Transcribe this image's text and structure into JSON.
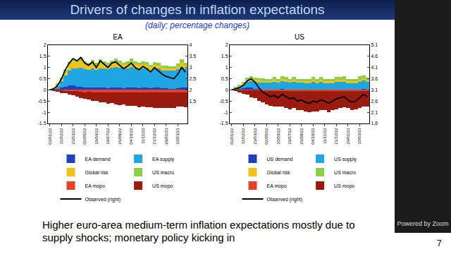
{
  "slide": {
    "title": "Drivers of changes in inflation expectations",
    "subtitle": "(daily; percentage changes)",
    "caption": "Higher euro-area medium-term inflation expectations mostly due to supply shocks; monetary policy kicking in",
    "footer": "Powered by Zoom",
    "page": "7"
  },
  "chart_data": [
    {
      "type": "bar",
      "stacked": true,
      "title": "EA",
      "grid": false,
      "legend": "bottom",
      "categories": [
        "03/01/22",
        null,
        null,
        "11/02/22",
        null,
        null,
        "23/03/22",
        null,
        null,
        "02/05/22",
        null,
        null,
        "10/06/22",
        null,
        null,
        "19/07/22",
        null,
        null,
        "26/08/22",
        null,
        null,
        "04/10/22",
        null,
        null,
        "11/11/22",
        null,
        null,
        "21/12/22",
        null,
        null,
        "29/01/23",
        null,
        null,
        "10/03/23",
        null,
        null
      ],
      "ylim": [
        -1.5,
        2
      ],
      "yticks": [
        -1.5,
        -1,
        -0.5,
        0,
        0.5,
        1,
        1.5,
        2
      ],
      "y2lim": [
        0.5,
        4
      ],
      "y2ticks": [
        1.5,
        2,
        2.5,
        3,
        3.5,
        4
      ],
      "series": [
        {
          "name": "EA demand",
          "color": "#1f3fbf",
          "values": [
            0,
            0.02,
            0.05,
            0.1,
            0.15,
            0.2,
            0.2,
            0.15,
            0.15,
            0.12,
            0.1,
            0.12,
            0.1,
            0.12,
            0.1,
            0.08,
            0.1,
            0.12,
            0.1,
            0.08,
            0.1,
            0.12,
            0.1,
            0.08,
            0.1,
            0.1,
            0.08,
            0.1,
            0.1,
            0.08,
            0.07,
            0.06,
            0.05,
            0.08,
            0.12,
            0.1
          ]
        },
        {
          "name": "EA supply",
          "color": "#1fa5e0",
          "values": [
            0,
            0.05,
            0.15,
            0.3,
            0.5,
            0.65,
            0.75,
            0.8,
            0.85,
            0.8,
            0.8,
            0.85,
            0.8,
            0.85,
            0.85,
            0.85,
            0.9,
            0.9,
            0.9,
            0.85,
            0.85,
            0.9,
            0.85,
            0.85,
            0.85,
            0.85,
            0.8,
            0.85,
            0.85,
            0.8,
            0.8,
            0.8,
            0.8,
            0.85,
            0.9,
            0.85
          ]
        },
        {
          "name": "Global risk",
          "color": "#f2c21b",
          "values": [
            0,
            0.02,
            0.05,
            0.1,
            0.2,
            0.3,
            0.35,
            0.3,
            0.3,
            0.25,
            0.2,
            0.25,
            0.2,
            0.25,
            0.2,
            0.18,
            0.2,
            0.22,
            0.2,
            0.18,
            0.2,
            0.22,
            0.2,
            0.18,
            0.2,
            0.18,
            0.15,
            0.18,
            0.15,
            0.12,
            0.1,
            0.1,
            0.1,
            0.12,
            0.2,
            0.15
          ]
        },
        {
          "name": "US macro",
          "color": "#8cd04a",
          "values": [
            0,
            0,
            0.02,
            0.05,
            0.05,
            0.08,
            0.1,
            0.1,
            0.12,
            0.1,
            0.1,
            0.12,
            0.1,
            0.15,
            0.12,
            0.1,
            0.12,
            0.15,
            0.12,
            0.1,
            0.12,
            0.15,
            0.12,
            0.1,
            0.12,
            0.12,
            0.1,
            0.12,
            0.12,
            0.1,
            0.1,
            0.1,
            0.1,
            0.12,
            0.15,
            0.12
          ]
        },
        {
          "name": "EA mopo",
          "color": "#e8402a",
          "values": [
            0,
            -0.01,
            -0.02,
            -0.03,
            -0.05,
            -0.05,
            -0.05,
            -0.05,
            -0.08,
            -0.1,
            -0.08,
            -0.1,
            -0.1,
            -0.1,
            -0.1,
            -0.12,
            -0.1,
            -0.1,
            -0.12,
            -0.1,
            -0.1,
            -0.12,
            -0.1,
            -0.12,
            -0.1,
            -0.12,
            -0.12,
            -0.1,
            -0.12,
            -0.12,
            -0.12,
            -0.1,
            -0.12,
            -0.1,
            -0.1,
            -0.12
          ]
        },
        {
          "name": "US mopo",
          "color": "#9b1b0f",
          "values": [
            0,
            -0.05,
            -0.05,
            -0.1,
            -0.1,
            -0.15,
            -0.2,
            -0.25,
            -0.3,
            -0.3,
            -0.35,
            -0.4,
            -0.4,
            -0.45,
            -0.45,
            -0.5,
            -0.5,
            -0.55,
            -0.55,
            -0.55,
            -0.6,
            -0.6,
            -0.6,
            -0.65,
            -0.65,
            -0.65,
            -0.65,
            -0.7,
            -0.7,
            -0.7,
            -0.7,
            -0.7,
            -0.7,
            -0.65,
            -0.65,
            -0.65
          ]
        },
        {
          "name": "Observed (right)",
          "type": "line",
          "axis": "y2",
          "color": "#000000",
          "values": [
            2,
            2.05,
            2.2,
            2.5,
            2.9,
            3.2,
            3.4,
            3.3,
            3.45,
            3.2,
            3.1,
            3.25,
            3.0,
            3.3,
            3.15,
            3.0,
            3.2,
            3.25,
            3.1,
            2.95,
            3.05,
            3.2,
            3.0,
            2.9,
            3.05,
            2.95,
            2.8,
            3.0,
            2.85,
            2.7,
            2.6,
            2.55,
            2.5,
            2.7,
            3.0,
            2.8
          ]
        }
      ]
    },
    {
      "type": "bar",
      "stacked": true,
      "title": "US",
      "grid": false,
      "legend": "bottom",
      "categories": [
        "03/01/22",
        null,
        null,
        "11/02/22",
        null,
        null,
        "23/03/22",
        null,
        null,
        "02/05/22",
        null,
        null,
        "10/06/22",
        null,
        null,
        "19/07/22",
        null,
        null,
        "26/08/22",
        null,
        null,
        "04/10/22",
        null,
        null,
        "11/11/22",
        null,
        null,
        "21/12/22",
        null,
        null,
        "29/01/23",
        null,
        null,
        "10/03/23",
        null,
        null
      ],
      "ylim": [
        -1.5,
        2
      ],
      "yticks": [
        -1.5,
        -1,
        -0.5,
        0,
        0.5,
        1,
        1.5,
        2
      ],
      "y2lim": [
        1.6,
        5.1
      ],
      "y2ticks": [
        1.6,
        2.1,
        2.6,
        3.1,
        3.6,
        4.1,
        4.6,
        5.1
      ],
      "series": [
        {
          "name": "US demand",
          "color": "#1f3fbf",
          "values": [
            0,
            0.02,
            0.05,
            0.08,
            0.1,
            0.1,
            0.05,
            0.03,
            0.02,
            0.02,
            0.02,
            0.02,
            0.02,
            0.03,
            0.02,
            0.02,
            0.02,
            0.02,
            0.02,
            0.02,
            0.02,
            0.02,
            0.02,
            0.02,
            0.02,
            0.02,
            0.02,
            0.02,
            0.02,
            0.02,
            0.02,
            0.02,
            0.02,
            0.02,
            0.03,
            0.02
          ]
        },
        {
          "name": "US supply",
          "color": "#1fa5e0",
          "values": [
            0,
            0.05,
            0.1,
            0.15,
            0.25,
            0.3,
            0.3,
            0.3,
            0.3,
            0.3,
            0.3,
            0.35,
            0.3,
            0.35,
            0.35,
            0.3,
            0.35,
            0.3,
            0.3,
            0.3,
            0.3,
            0.35,
            0.3,
            0.35,
            0.3,
            0.3,
            0.3,
            0.35,
            0.35,
            0.35,
            0.3,
            0.3,
            0.3,
            0.35,
            0.4,
            0.35
          ]
        },
        {
          "name": "Global risk",
          "color": "#f2c21b",
          "values": [
            0,
            0.02,
            0.05,
            0.08,
            0.1,
            0.12,
            0.1,
            0.1,
            0.08,
            0.08,
            0.08,
            0.1,
            0.08,
            0.1,
            0.08,
            0.08,
            0.08,
            0.08,
            0.08,
            0.06,
            0.06,
            0.08,
            0.06,
            0.08,
            0.06,
            0.06,
            0.06,
            0.08,
            0.08,
            0.08,
            0.06,
            0.06,
            0.06,
            0.08,
            0.08,
            0.06
          ]
        },
        {
          "name": "US macro",
          "color": "#8cd04a",
          "values": [
            0,
            0.02,
            0.03,
            0.05,
            0.1,
            0.1,
            0.1,
            0.1,
            0.12,
            0.1,
            0.1,
            0.12,
            0.1,
            0.12,
            0.12,
            0.1,
            0.12,
            0.1,
            0.1,
            0.1,
            0.1,
            0.12,
            0.1,
            0.12,
            0.1,
            0.1,
            0.1,
            0.12,
            0.12,
            0.15,
            0.12,
            0.1,
            0.12,
            0.15,
            0.15,
            0.12
          ]
        },
        {
          "name": "EA mopo",
          "color": "#e8402a",
          "values": [
            0,
            0,
            -0.01,
            -0.02,
            -0.02,
            -0.03,
            -0.03,
            -0.03,
            -0.04,
            -0.05,
            -0.05,
            -0.05,
            -0.05,
            -0.05,
            -0.05,
            -0.06,
            -0.05,
            -0.06,
            -0.06,
            -0.06,
            -0.06,
            -0.06,
            -0.06,
            -0.06,
            -0.06,
            -0.06,
            -0.06,
            -0.06,
            -0.06,
            -0.06,
            -0.06,
            -0.06,
            -0.06,
            -0.05,
            -0.05,
            -0.05
          ]
        },
        {
          "name": "US mopo",
          "color": "#9b1b0f",
          "values": [
            0,
            -0.05,
            -0.1,
            -0.15,
            -0.2,
            -0.3,
            -0.35,
            -0.45,
            -0.5,
            -0.6,
            -0.65,
            -0.7,
            -0.7,
            -0.7,
            -0.75,
            -0.8,
            -0.75,
            -0.85,
            -0.85,
            -0.9,
            -0.95,
            -0.9,
            -0.9,
            -0.85,
            -0.85,
            -0.95,
            -0.85,
            -0.8,
            -0.75,
            -0.7,
            -0.75,
            -0.85,
            -0.8,
            -0.75,
            -0.7,
            -0.7
          ]
        },
        {
          "name": "Observed (right)",
          "type": "line",
          "axis": "y2",
          "color": "#000000",
          "values": [
            3.1,
            3.15,
            3.2,
            3.3,
            3.5,
            3.6,
            3.45,
            3.2,
            3.0,
            2.9,
            2.8,
            2.85,
            2.75,
            2.9,
            2.8,
            2.7,
            2.75,
            2.6,
            2.65,
            2.55,
            2.5,
            2.6,
            2.55,
            2.65,
            2.6,
            2.5,
            2.6,
            2.7,
            2.75,
            2.8,
            2.65,
            2.55,
            2.6,
            2.75,
            2.9,
            2.8
          ]
        }
      ]
    }
  ]
}
